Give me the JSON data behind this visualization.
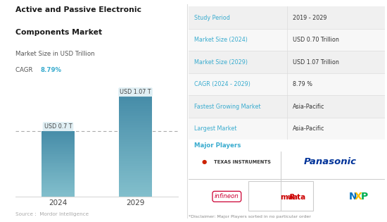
{
  "title_line1": "Active and Passive Electronic",
  "title_line2": "Components Market",
  "subtitle1": "Market Size in USD Trillion",
  "subtitle2_prefix": "CAGR ",
  "subtitle2_value": "8.79%",
  "bar_years": [
    "2024",
    "2029"
  ],
  "bar_values": [
    0.7,
    1.07
  ],
  "bar_labels": [
    "USD 0.7 T",
    "USD 1.07 T"
  ],
  "bar_color_top": "#82bfcc",
  "bar_color_bottom": "#4a8fa8",
  "dashed_line_y": 0.7,
  "source_text": "Source :  Mordor Intelligence",
  "table_rows": [
    [
      "Study Period",
      "2019 - 2029"
    ],
    [
      "Market Size (2024)",
      "USD 0.70 Trillion"
    ],
    [
      "Market Size (2029)",
      "USD 1.07 Trillion"
    ],
    [
      "CAGR (2024 - 2029)",
      "8.79 %"
    ],
    [
      "Fastest Growing Market",
      "Asia-Pacific"
    ],
    [
      "Largest Market",
      "Asia-Pacific"
    ]
  ],
  "major_players_label": "Major Players",
  "label_color": "#3aaccf",
  "value_color": "#333333",
  "disclaimer": "*Disclaimer: Major Players sorted in no particular order",
  "background_color": "#ffffff",
  "right_bg_color": "#f7f7f7",
  "divider_color": "#dddddd",
  "row_alt_color": "#f0f0f0"
}
